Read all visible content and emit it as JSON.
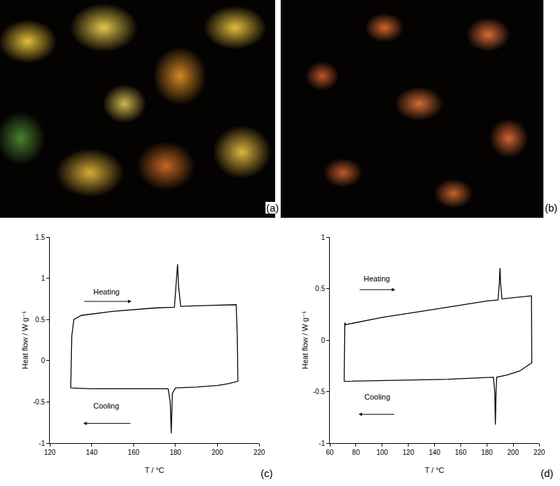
{
  "images": [
    {
      "label": "(a)"
    },
    {
      "label": "(b)"
    }
  ],
  "chart_data": [
    {
      "type": "line",
      "label": "(c)",
      "xlabel": "T / °C",
      "ylabel": "Heat flow / W g⁻¹",
      "x": [
        130,
        130.5,
        131.5,
        135,
        150,
        170,
        179.5,
        180.5,
        181,
        181.5,
        182.5,
        195,
        209,
        209.5,
        209.8,
        205,
        200,
        190,
        180,
        178.5,
        178,
        177.5,
        176.5,
        160,
        140,
        130
      ],
      "values": [
        -0.33,
        0.3,
        0.5,
        0.55,
        0.6,
        0.64,
        0.65,
        1.0,
        1.17,
        0.9,
        0.66,
        0.67,
        0.68,
        0.3,
        -0.25,
        -0.28,
        -0.3,
        -0.32,
        -0.33,
        -0.4,
        -0.88,
        -0.5,
        -0.34,
        -0.34,
        -0.34,
        -0.33
      ],
      "color": "#000000",
      "xlim": [
        120,
        220
      ],
      "xticks": [
        120,
        140,
        160,
        180,
        200,
        220
      ],
      "ylim": [
        -1,
        1.5
      ],
      "yticks": [
        -1,
        -0.5,
        0,
        0.5,
        1,
        1.5
      ],
      "grid": false,
      "annotations": [
        {
          "text": "Heating",
          "x": 147,
          "y": 0.84,
          "arrow": [
            136,
            159
          ],
          "arrow_y": 0.72
        },
        {
          "text": "Cooling",
          "x": 147,
          "y": -0.55,
          "arrow": [
            159,
            136
          ],
          "arrow_y": -0.76
        }
      ]
    },
    {
      "type": "line",
      "label": "(d)",
      "xlabel": "T / °C",
      "ylabel": "Heat flow / W g⁻¹",
      "x": [
        71,
        71.5,
        72,
        100,
        140,
        180,
        188.5,
        189.5,
        190,
        190.5,
        191.5,
        200,
        214,
        214.3,
        205,
        195,
        187.5,
        187,
        186.5,
        186,
        185,
        150,
        100,
        71,
        71
      ],
      "values": [
        -0.4,
        0.17,
        0.15,
        0.22,
        0.3,
        0.38,
        0.39,
        0.55,
        0.7,
        0.55,
        0.4,
        0.41,
        0.43,
        -0.22,
        -0.3,
        -0.34,
        -0.36,
        -0.5,
        -0.82,
        -0.5,
        -0.36,
        -0.38,
        -0.39,
        -0.4,
        -0.4
      ],
      "color": "#000000",
      "xlim": [
        60,
        220
      ],
      "xticks": [
        60,
        80,
        100,
        120,
        140,
        160,
        180,
        200,
        220
      ],
      "ylim": [
        -1,
        1
      ],
      "yticks": [
        -1,
        -0.5,
        0,
        0.5,
        1
      ],
      "grid": false,
      "annotations": [
        {
          "text": "Heating",
          "x": 96,
          "y": 0.6,
          "arrow": [
            82,
            110
          ],
          "arrow_y": 0.49
        },
        {
          "text": "Cooling",
          "x": 96,
          "y": -0.55,
          "arrow": [
            110,
            82
          ],
          "arrow_y": -0.72
        }
      ]
    }
  ]
}
